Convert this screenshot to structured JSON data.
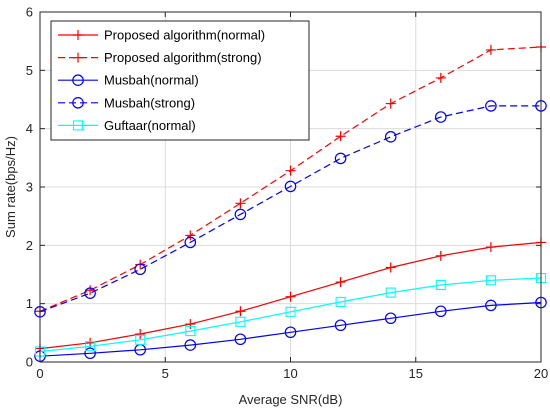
{
  "chart_data": {
    "type": "line",
    "title": "",
    "xlabel": "Average SNR(dB)",
    "ylabel": "Sum rate(bps/Hz)",
    "xlim": [
      0,
      20
    ],
    "ylim": [
      0,
      6
    ],
    "xticks": [
      0,
      5,
      10,
      15,
      20
    ],
    "yticks": [
      0,
      1,
      2,
      3,
      4,
      5,
      6
    ],
    "grid": true,
    "legend_position": "top-left",
    "x": [
      0,
      2,
      4,
      6,
      8,
      10,
      12,
      14,
      16,
      18,
      20
    ],
    "series": [
      {
        "name": "Proposed algorithm(normal)",
        "color": "#ff0000",
        "line_style": "solid",
        "marker": "plus",
        "values": [
          0.23,
          0.33,
          0.48,
          0.65,
          0.87,
          1.12,
          1.37,
          1.62,
          1.82,
          1.97,
          2.05
        ]
      },
      {
        "name": "Proposed algorithm(strong)",
        "color": "#ff0000",
        "line_style": "dashed",
        "marker": "plus",
        "values": [
          0.87,
          1.23,
          1.67,
          2.17,
          2.72,
          3.28,
          3.87,
          4.43,
          4.87,
          5.35,
          5.4
        ]
      },
      {
        "name": "Musbah(normal)",
        "color": "#0000ff",
        "line_style": "solid",
        "marker": "circle",
        "values": [
          0.1,
          0.15,
          0.21,
          0.29,
          0.39,
          0.51,
          0.63,
          0.75,
          0.87,
          0.97,
          1.02
        ]
      },
      {
        "name": "Musbah(strong)",
        "color": "#0000ff",
        "line_style": "dashed",
        "marker": "circle",
        "values": [
          0.86,
          1.18,
          1.59,
          2.05,
          2.53,
          3.01,
          3.49,
          3.86,
          4.2,
          4.39,
          4.39
        ]
      },
      {
        "name": "Guftaar(normal)",
        "color": "#00ffff",
        "line_style": "solid",
        "marker": "square",
        "values": [
          0.18,
          0.27,
          0.38,
          0.53,
          0.69,
          0.86,
          1.03,
          1.19,
          1.32,
          1.4,
          1.44
        ]
      }
    ]
  }
}
